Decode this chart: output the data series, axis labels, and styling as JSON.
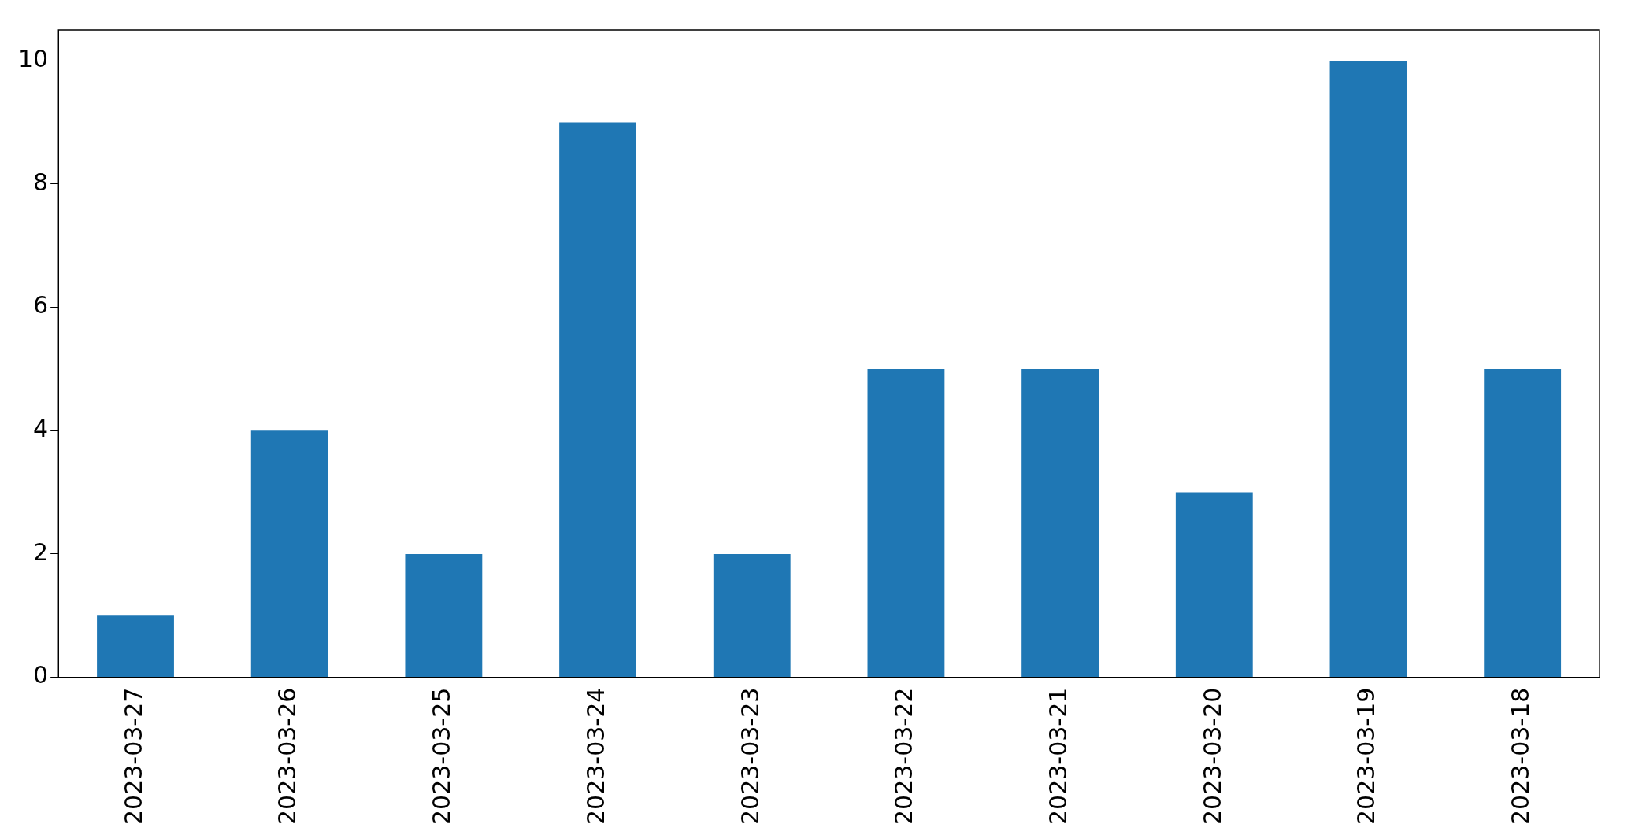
{
  "chart_data": {
    "type": "bar",
    "categories": [
      "2023-03-27",
      "2023-03-26",
      "2023-03-25",
      "2023-03-24",
      "2023-03-23",
      "2023-03-22",
      "2023-03-21",
      "2023-03-20",
      "2023-03-19",
      "2023-03-18"
    ],
    "values": [
      1,
      4,
      2,
      9,
      2,
      5,
      5,
      3,
      10,
      5
    ],
    "color": "#1f77b4",
    "ylim": [
      0,
      10.5
    ],
    "yticks": [
      0,
      2,
      4,
      6,
      8,
      10
    ],
    "grid": false,
    "legend": false
  }
}
